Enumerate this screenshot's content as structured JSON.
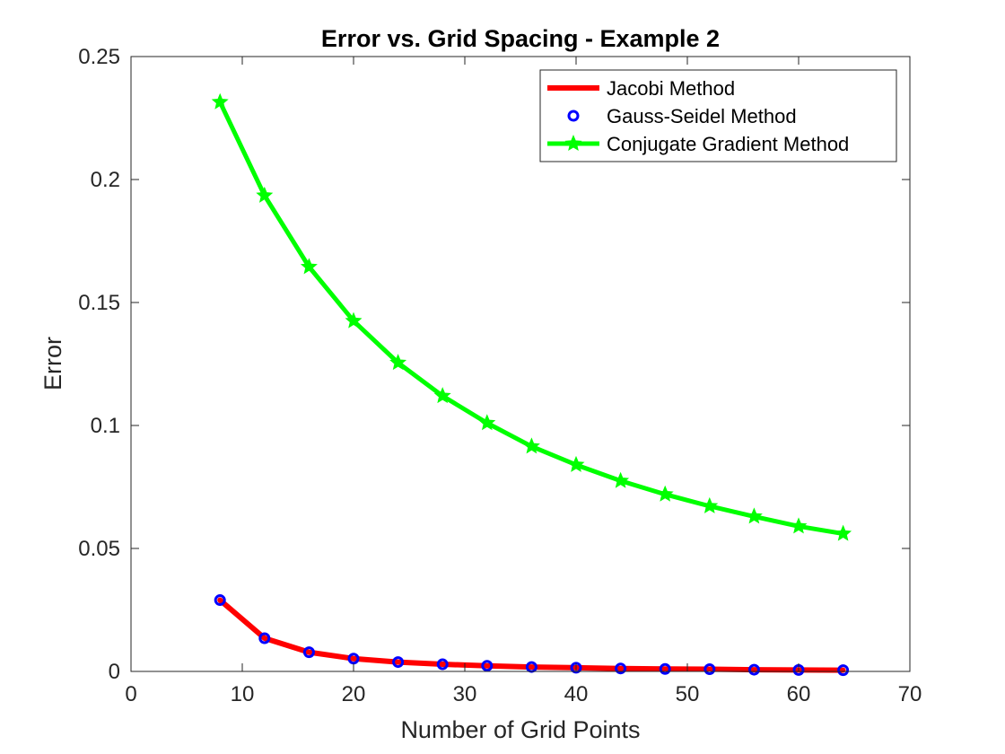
{
  "chart_data": {
    "type": "line",
    "title": "Error vs. Grid Spacing - Example 2",
    "xlabel": "Number of Grid Points",
    "ylabel": "Error",
    "xlim": [
      0,
      70
    ],
    "ylim": [
      0,
      0.25
    ],
    "xticks": [
      0,
      10,
      20,
      30,
      40,
      50,
      60,
      70
    ],
    "yticks": [
      0,
      0.05,
      0.1,
      0.15,
      0.2,
      0.25
    ],
    "xtick_labels": [
      "0",
      "10",
      "20",
      "30",
      "40",
      "50",
      "60",
      "70"
    ],
    "ytick_labels": [
      "0",
      "0.05",
      "0.1",
      "0.15",
      "0.2",
      "0.25"
    ],
    "grid": false,
    "legend_position": "top-right",
    "x": [
      8,
      12,
      16,
      20,
      24,
      28,
      32,
      36,
      40,
      44,
      48,
      52,
      56,
      60,
      64
    ],
    "series": [
      {
        "name": "Jacobi Method",
        "color": "#ff0000",
        "marker": "none",
        "values": [
          0.029,
          0.0135,
          0.0078,
          0.0052,
          0.0038,
          0.0029,
          0.0023,
          0.0018,
          0.0015,
          0.0012,
          0.001,
          0.0009,
          0.0007,
          0.0006,
          0.0005
        ]
      },
      {
        "name": "Gauss-Seidel Method",
        "color": "#0000ff",
        "marker": "circle",
        "values": [
          0.029,
          0.0135,
          0.0078,
          0.0052,
          0.0038,
          0.0029,
          0.0023,
          0.0018,
          0.0015,
          0.0012,
          0.001,
          0.0009,
          0.0007,
          0.0006,
          0.0005
        ]
      },
      {
        "name": "Conjugate Gradient Method",
        "color": "#00ff00",
        "marker": "star",
        "values": [
          0.2315,
          0.1935,
          0.1645,
          0.1425,
          0.1255,
          0.112,
          0.101,
          0.0915,
          0.084,
          0.0775,
          0.072,
          0.0672,
          0.063,
          0.059,
          0.056
        ]
      }
    ]
  }
}
